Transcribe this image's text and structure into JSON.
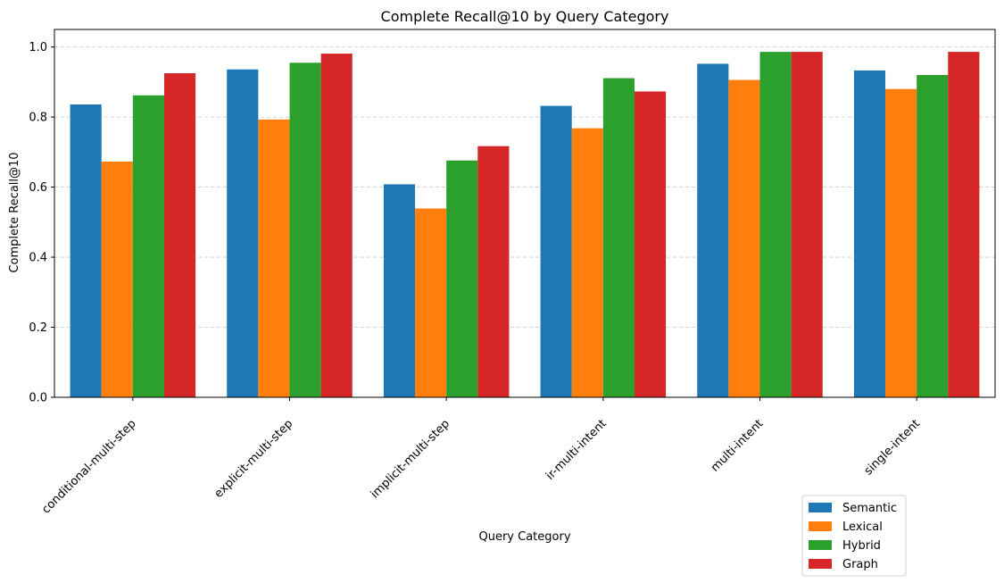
{
  "chart_data": {
    "type": "bar",
    "title": "Complete Recall@10 by Query Category",
    "xlabel": "Query Category",
    "ylabel": "Complete Recall@10",
    "ylim": [
      0,
      1.05
    ],
    "yticks": [
      "0.0",
      "0.2",
      "0.4",
      "0.6",
      "0.8",
      "1.0"
    ],
    "grid": "y-dashed",
    "legend_position": "lower-right",
    "categories": [
      "conditional-multi-step",
      "explicit-multi-step",
      "implicit-multi-step",
      "ir-multi-intent",
      "multi-intent",
      "single-intent"
    ],
    "series": [
      {
        "name": "Semantic",
        "color": "#1f77b4",
        "values": [
          0.836,
          0.936,
          0.608,
          0.832,
          0.952,
          0.933
        ]
      },
      {
        "name": "Lexical",
        "color": "#ff7f0e",
        "values": [
          0.673,
          0.793,
          0.539,
          0.768,
          0.906,
          0.88
        ]
      },
      {
        "name": "Hybrid",
        "color": "#2ca02c",
        "values": [
          0.862,
          0.955,
          0.676,
          0.911,
          0.986,
          0.92
        ]
      },
      {
        "name": "Graph",
        "color": "#d62728",
        "values": [
          0.925,
          0.981,
          0.717,
          0.873,
          0.986,
          0.986
        ]
      }
    ]
  }
}
